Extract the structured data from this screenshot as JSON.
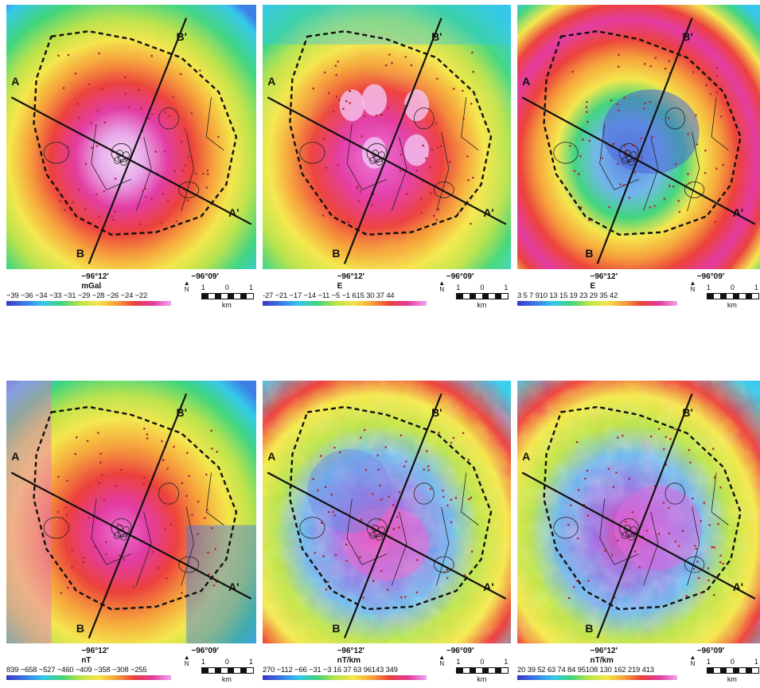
{
  "profile_labels": {
    "a": "A",
    "a_prime": "A'",
    "b": "B",
    "b_prime": "B'"
  },
  "north_label": "N",
  "scale": {
    "left": "1",
    "mid": "0",
    "right": "1",
    "unit": "km"
  },
  "panels": [
    {
      "unit": "mGal",
      "lon_left": "−96°12′",
      "lon_right": "−96°09′",
      "ticks": "−39 −36 −34 −33 −31 −29 −28 −26 −24 −22",
      "colormap": "smooth-center-high"
    },
    {
      "unit": "E",
      "lon_left": "−96°12′",
      "lon_right": "−96°09′",
      "ticks": "-27 −21 −17 −14 −11  −5 −1   615 30 37 44",
      "colormap": "blobby-ring"
    },
    {
      "unit": "E",
      "lon_left": "−96°12′",
      "lon_right": "−96°09′",
      "ticks": "3  5  7 910   13   15   19   23   29   35   42",
      "colormap": "annulus"
    },
    {
      "unit": "nT",
      "lon_left": "−96°12′",
      "lon_right": "−96°09′",
      "ticks": "839 −658 −527 −460 −409 −358 −308 −255",
      "colormap": "magnetic-west-high"
    },
    {
      "unit": "nT/km",
      "lon_left": "−96°12′",
      "lon_right": "−96°09′",
      "ticks": "270 −112 −66 −31  −3 16 37 63 96143 349",
      "colormap": "noisy-high-frequency"
    },
    {
      "unit": "nT/km",
      "lon_left": "−96°12′",
      "lon_right": "−96°09′",
      "ticks": "20 39 52 63 74 84 95108 130 162 219 413",
      "colormap": "noisy-ring"
    }
  ],
  "colors": {
    "spectrum": [
      "#3a36c8",
      "#3c78e6",
      "#33c6ea",
      "#3fd47a",
      "#b9e24a",
      "#f4e64a",
      "#f6a13a",
      "#ec3f3a",
      "#e23a9e",
      "#f0a6ee"
    ],
    "outline": "#111111"
  }
}
